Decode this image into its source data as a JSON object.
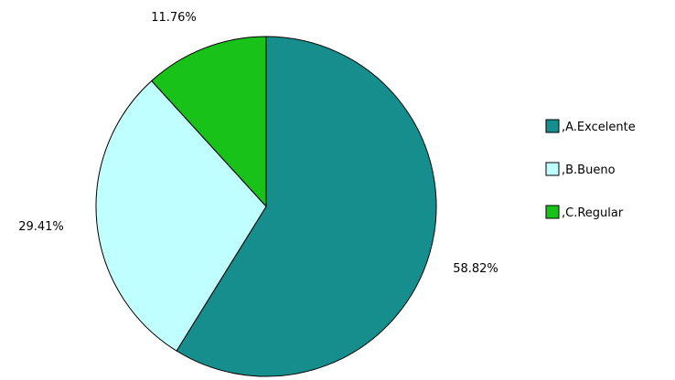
{
  "chart_data": {
    "type": "pie",
    "categories": [
      ",A.Excelente",
      ",B.Bueno",
      ",C.Regular"
    ],
    "values": [
      58.82,
      29.41,
      11.76
    ],
    "labels": [
      "58.82%",
      "29.41%",
      "11.76%"
    ],
    "colors": [
      "#168E8E",
      "#BFFFFF",
      "#18C218"
    ],
    "start_angle_deg": 0,
    "direction": "clockwise",
    "legend": "right",
    "title": ""
  }
}
